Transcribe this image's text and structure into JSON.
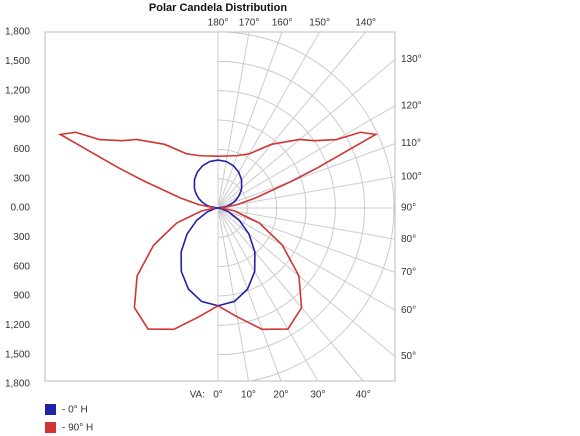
{
  "chart_data": {
    "type": "polar",
    "title": "Polar Candela Distribution",
    "angle_axis_label": "VA:",
    "rlim": [
      0,
      1800
    ],
    "rticks": [
      {
        "value": 0,
        "label": "0.00"
      },
      {
        "value": 300,
        "label": "300"
      },
      {
        "value": 600,
        "label": "600"
      },
      {
        "value": 900,
        "label": "900"
      },
      {
        "value": 1200,
        "label": "1,200"
      },
      {
        "value": 1500,
        "label": "1,500"
      },
      {
        "value": 1800,
        "label": "1,800"
      }
    ],
    "angle_ticks": [
      {
        "value": 0,
        "label": "0°"
      },
      {
        "value": 10,
        "label": "10°"
      },
      {
        "value": 20,
        "label": "20°"
      },
      {
        "value": 30,
        "label": "30°"
      },
      {
        "value": 40,
        "label": "40°"
      },
      {
        "value": 50,
        "label": "50°"
      },
      {
        "value": 60,
        "label": "60°"
      },
      {
        "value": 70,
        "label": "70°"
      },
      {
        "value": 80,
        "label": "80°"
      },
      {
        "value": 90,
        "label": "90°"
      },
      {
        "value": 100,
        "label": "100°"
      },
      {
        "value": 110,
        "label": "110°"
      },
      {
        "value": 120,
        "label": "120°"
      },
      {
        "value": 130,
        "label": "130°"
      },
      {
        "value": 140,
        "label": "140°"
      },
      {
        "value": 150,
        "label": "150°"
      },
      {
        "value": 160,
        "label": "160°"
      },
      {
        "value": 170,
        "label": "170°"
      },
      {
        "value": 180,
        "label": "180°"
      }
    ],
    "angles": [
      0,
      10,
      20,
      30,
      40,
      50,
      60,
      70,
      80,
      90,
      100,
      105,
      110,
      112,
      115,
      118,
      120,
      125,
      130,
      140,
      150,
      160,
      170,
      180
    ],
    "series": [
      {
        "name": "- 0° H",
        "color": "#2020a8",
        "values": [
          1000,
          970,
          883,
          750,
          587,
          413,
          250,
          117,
          30,
          0,
          85,
          127,
          168,
          184,
          207,
          230,
          245,
          281,
          315,
          375,
          424,
          460,
          483,
          490
        ]
      },
      {
        "name": "- 90° H",
        "color": "#d03434",
        "values": [
          1000,
          1130,
          1320,
          1430,
          1330,
          1080,
          760,
          450,
          170,
          30,
          200,
          400,
          800,
          1100,
          1780,
          1650,
          1400,
          1200,
          1090,
          850,
          640,
          570,
          540,
          530
        ]
      }
    ]
  }
}
